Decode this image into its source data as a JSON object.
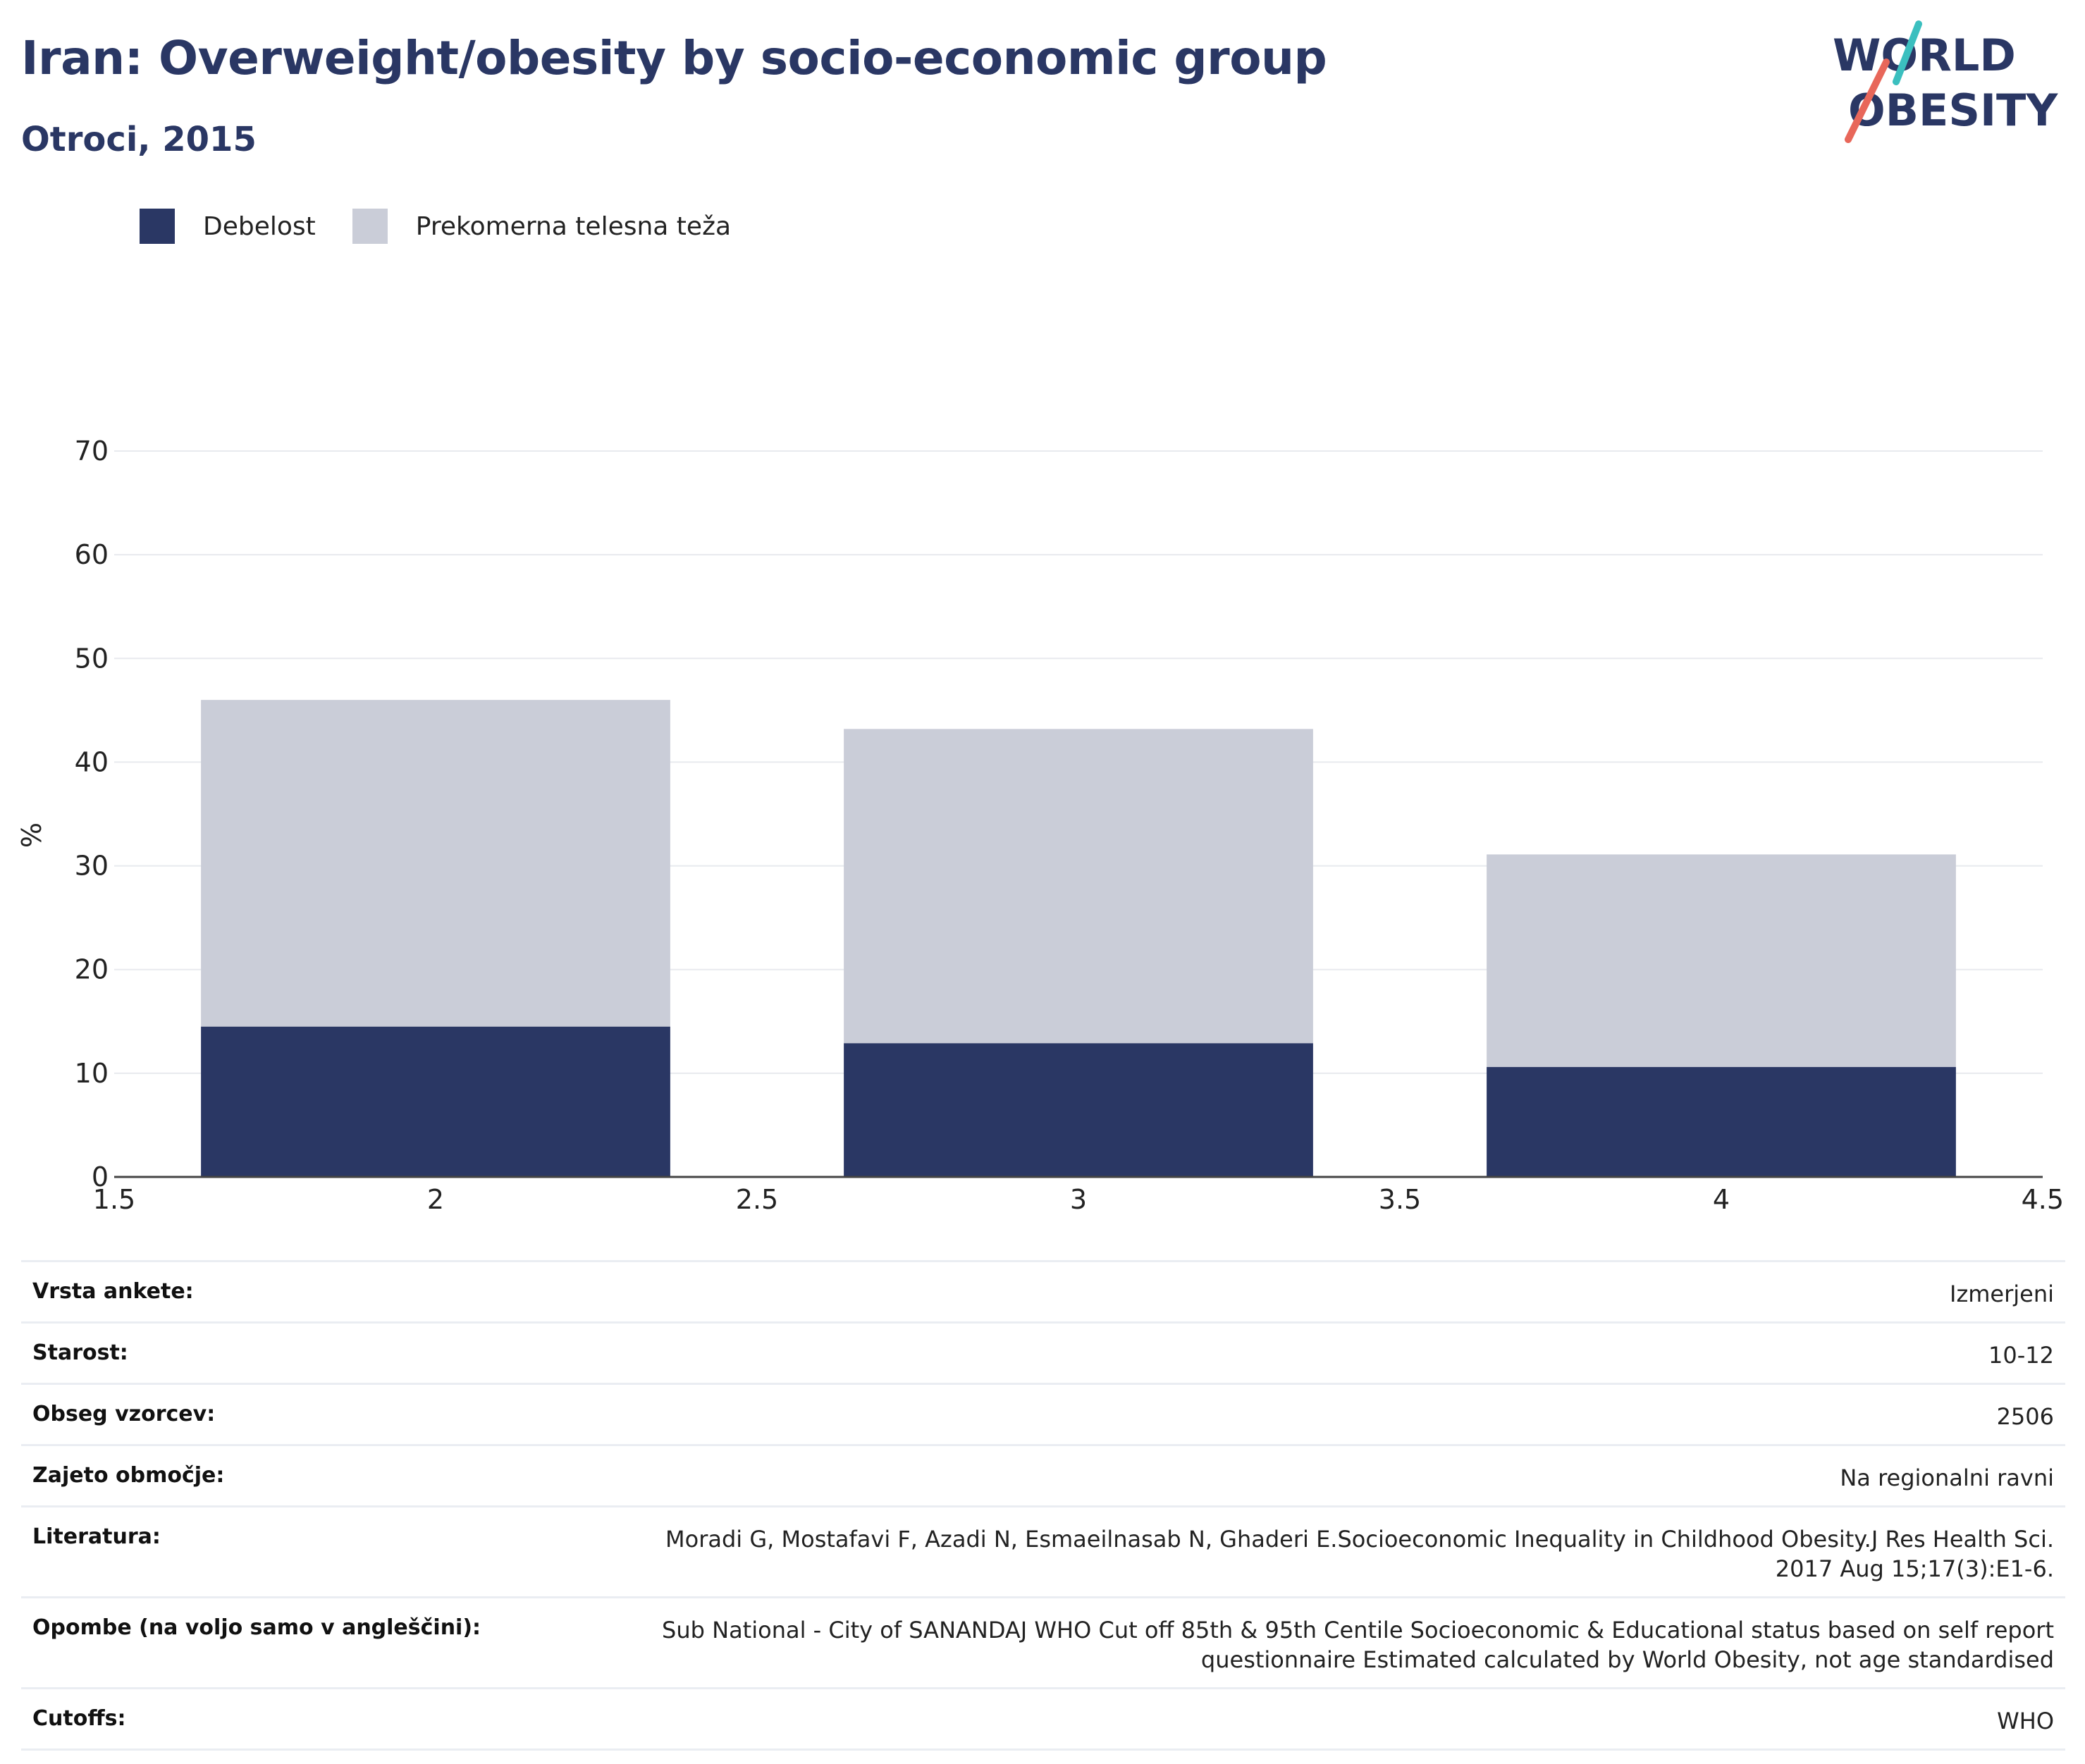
{
  "header": {
    "title": "Iran: Overweight/obesity by socio-economic group",
    "subtitle": "Otroci, 2015"
  },
  "logo": {
    "line1": "WORLD",
    "line2": "OBESITY"
  },
  "legend": [
    {
      "label": "Debelost",
      "color": "#2a3764"
    },
    {
      "label": "Prekomerna telesna teža",
      "color": "#cacdd8"
    }
  ],
  "chart_data": {
    "type": "bar",
    "stacked": true,
    "x": [
      2,
      3,
      4
    ],
    "series": [
      {
        "name": "Debelost",
        "values": [
          14.5,
          12.9,
          10.6
        ],
        "color": "#2a3764"
      },
      {
        "name": "Prekomerna telesna teža",
        "values": [
          31.5,
          30.3,
          20.5
        ],
        "color": "#cacdd8"
      }
    ],
    "totals": [
      46.0,
      43.2,
      31.1
    ],
    "xlim": [
      1.5,
      4.5
    ],
    "xticks": [
      "1.5",
      "2",
      "2.5",
      "3",
      "3.5",
      "4",
      "4.5"
    ],
    "ylim": [
      0,
      70
    ],
    "yticks": [
      "0",
      "10",
      "20",
      "30",
      "40",
      "50",
      "60",
      "70"
    ],
    "ylabel": "%",
    "grid": true,
    "legend_position": "top-left"
  },
  "meta": [
    {
      "label": "Vrsta ankete:",
      "value": "Izmerjeni"
    },
    {
      "label": "Starost:",
      "value": "10-12"
    },
    {
      "label": "Obseg vzorcev:",
      "value": "2506"
    },
    {
      "label": "Zajeto območje:",
      "value": "Na regionalni ravni"
    },
    {
      "label": "Literatura:",
      "value": "Moradi G, Mostafavi F, Azadi N, Esmaeilnasab N, Ghaderi E.Socioeconomic Inequality in Childhood Obesity.J Res Health Sci. 2017 Aug 15;17(3):E1-6."
    },
    {
      "label": "Opombe (na voljo samo v angleščini):",
      "value": "Sub National - City of SANANDAJ WHO Cut off 85th & 95th Centile Socioeconomic & Educational status based on self report questionnaire Estimated calculated by World Obesity, not age standardised"
    },
    {
      "label": "Cutoffs:",
      "value": "WHO"
    }
  ]
}
